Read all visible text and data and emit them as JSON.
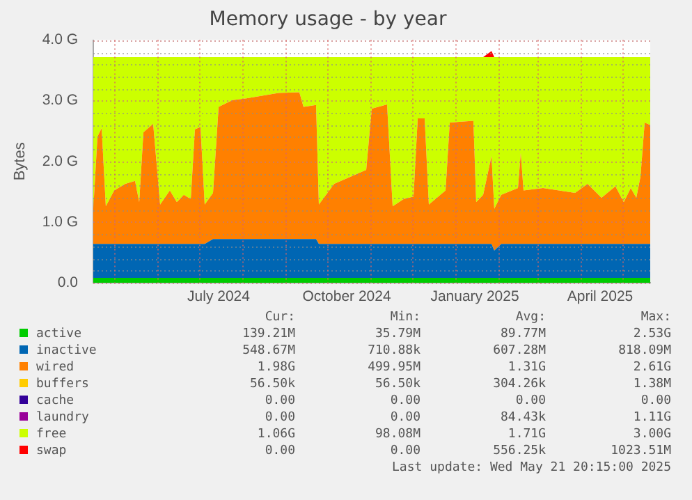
{
  "chart_data": {
    "type": "area",
    "title": "Memory usage - by year",
    "ylabel": "Bytes",
    "stacked": true,
    "legend": "bottom",
    "grid": true,
    "x": [
      "2024-04-16",
      "2024-04-19",
      "2024-04-22",
      "2024-04-25",
      "2024-05-01",
      "2024-05-09",
      "2024-05-16",
      "2024-05-19",
      "2024-05-22",
      "2024-05-29",
      "2024-06-03",
      "2024-06-10",
      "2024-06-15",
      "2024-06-20",
      "2024-06-25",
      "2024-06-28",
      "2024-07-02",
      "2024-07-05",
      "2024-07-11",
      "2024-07-15",
      "2024-07-25",
      "2024-08-04",
      "2024-08-27",
      "2024-09-11",
      "2024-09-14",
      "2024-09-23",
      "2024-09-25",
      "2024-10-06",
      "2024-10-29",
      "2024-11-02",
      "2024-11-13",
      "2024-11-17",
      "2024-11-25",
      "2024-12-02",
      "2024-12-05",
      "2024-12-10",
      "2024-12-13",
      "2024-12-25",
      "2024-12-28",
      "2025-01-14",
      "2025-01-16",
      "2025-01-21",
      "2025-01-27",
      "2025-01-29",
      "2025-02-03",
      "2025-02-15",
      "2025-02-17",
      "2025-02-19",
      "2025-03-05",
      "2025-03-28",
      "2025-04-06",
      "2025-04-16",
      "2025-04-26",
      "2025-05-02",
      "2025-05-07",
      "2025-05-11",
      "2025-05-14",
      "2025-05-17",
      "2025-05-21"
    ],
    "xlim": [
      "2024-04-16",
      "2025-05-21"
    ],
    "xticks": [
      {
        "value": "2024-05-01",
        "label": null
      },
      {
        "value": "2024-06-01",
        "label": null
      },
      {
        "value": "2024-07-01",
        "label": null
      },
      {
        "value": "2024-07-15",
        "label": "July 2024"
      },
      {
        "value": "2024-08-01",
        "label": null
      },
      {
        "value": "2024-09-01",
        "label": null
      },
      {
        "value": "2024-10-01",
        "label": null
      },
      {
        "value": "2024-10-15",
        "label": "October 2024"
      },
      {
        "value": "2024-11-01",
        "label": null
      },
      {
        "value": "2024-12-01",
        "label": null
      },
      {
        "value": "2025-01-01",
        "label": null
      },
      {
        "value": "2025-01-15",
        "label": "January 2025"
      },
      {
        "value": "2025-02-01",
        "label": null
      },
      {
        "value": "2025-03-01",
        "label": null
      },
      {
        "value": "2025-04-01",
        "label": null
      },
      {
        "value": "2025-04-15",
        "label": "April 2025"
      },
      {
        "value": "2025-05-01",
        "label": null
      }
    ],
    "ylim": [
      0,
      4
    ],
    "yticks": [
      {
        "value": 0,
        "label": "0.0"
      },
      {
        "value": 0.2,
        "label": null
      },
      {
        "value": 0.4,
        "label": null
      },
      {
        "value": 0.6,
        "label": null
      },
      {
        "value": 0.8,
        "label": null
      },
      {
        "value": 1,
        "label": "1.0 G"
      },
      {
        "value": 1.2,
        "label": null
      },
      {
        "value": 1.4,
        "label": null
      },
      {
        "value": 1.6,
        "label": null
      },
      {
        "value": 1.8,
        "label": null
      },
      {
        "value": 2,
        "label": "2.0 G"
      },
      {
        "value": 2.2,
        "label": null
      },
      {
        "value": 2.4,
        "label": null
      },
      {
        "value": 2.6,
        "label": null
      },
      {
        "value": 2.8,
        "label": null
      },
      {
        "value": 3,
        "label": "3.0 G"
      },
      {
        "value": 3.2,
        "label": null
      },
      {
        "value": 3.4,
        "label": null
      },
      {
        "value": 3.6,
        "label": null
      },
      {
        "value": 3.8,
        "label": null
      },
      {
        "value": 4,
        "label": "4.0 G"
      }
    ],
    "series": [
      {
        "name": "active",
        "color": "#00cc00",
        "values": [
          0.08,
          0.08,
          0.08,
          0.08,
          0.08,
          0.08,
          0.08,
          0.08,
          0.08,
          0.08,
          0.08,
          0.08,
          0.08,
          0.08,
          0.08,
          0.08,
          0.08,
          0.08,
          0.08,
          0.08,
          0.08,
          0.08,
          0.08,
          0.08,
          0.08,
          0.08,
          0.08,
          0.08,
          0.08,
          0.08,
          0.08,
          0.08,
          0.08,
          0.08,
          0.08,
          0.08,
          0.08,
          0.08,
          0.08,
          0.08,
          0.08,
          0.08,
          0.08,
          0.08,
          0.08,
          0.08,
          0.08,
          0.08,
          0.08,
          0.08,
          0.08,
          0.08,
          0.08,
          0.08,
          0.08,
          0.08,
          0.08,
          0.08,
          0.08
        ]
      },
      {
        "name": "inactive",
        "color": "#0066b3",
        "values": [
          0.56,
          0.56,
          0.56,
          0.56,
          0.56,
          0.56,
          0.56,
          0.56,
          0.56,
          0.56,
          0.56,
          0.56,
          0.56,
          0.56,
          0.56,
          0.56,
          0.56,
          0.56,
          0.64,
          0.64,
          0.64,
          0.64,
          0.64,
          0.64,
          0.64,
          0.64,
          0.56,
          0.56,
          0.56,
          0.56,
          0.56,
          0.56,
          0.56,
          0.56,
          0.56,
          0.56,
          0.56,
          0.56,
          0.56,
          0.56,
          0.56,
          0.56,
          0.56,
          0.45,
          0.56,
          0.56,
          0.56,
          0.56,
          0.56,
          0.56,
          0.56,
          0.56,
          0.56,
          0.56,
          0.56,
          0.56,
          0.56,
          0.56,
          0.56
        ]
      },
      {
        "name": "wired",
        "color": "#ff8000",
        "values": [
          0.58,
          1.77,
          1.91,
          0.62,
          0.88,
          0.99,
          1.04,
          0.69,
          1.84,
          1.98,
          0.65,
          0.88,
          0.69,
          0.81,
          0.74,
          1.89,
          1.93,
          0.65,
          0.76,
          2.18,
          2.29,
          2.32,
          2.41,
          2.42,
          2.18,
          2.21,
          0.65,
          0.99,
          1.22,
          2.23,
          2.3,
          0.62,
          0.74,
          0.78,
          2.07,
          2.07,
          0.65,
          0.88,
          2.0,
          2.03,
          0.69,
          0.81,
          1.45,
          0.69,
          0.81,
          0.92,
          1.5,
          0.88,
          0.92,
          0.84,
          0.99,
          0.76,
          0.95,
          0.69,
          0.92,
          0.76,
          1.11,
          2.0,
          1.96
        ]
      },
      {
        "name": "buffers",
        "color": "#ffcc00",
        "values": [
          null,
          null,
          null,
          null,
          null,
          null,
          null,
          null,
          null,
          null,
          null,
          null,
          null,
          null,
          null,
          null,
          null,
          null,
          null,
          null,
          null,
          null,
          null,
          null,
          null,
          null,
          null,
          null,
          null,
          null,
          null,
          null,
          null,
          null,
          null,
          null,
          null,
          null,
          null,
          null,
          null,
          null,
          null,
          null,
          null,
          null,
          null,
          null,
          null,
          null,
          null,
          null,
          null,
          null,
          null,
          null,
          null,
          null,
          null
        ]
      },
      {
        "name": "cache",
        "color": "#330099",
        "values": [
          null,
          null,
          null,
          null,
          null,
          null,
          null,
          null,
          null,
          null,
          null,
          null,
          null,
          null,
          null,
          null,
          null,
          null,
          null,
          null,
          null,
          null,
          null,
          null,
          null,
          null,
          null,
          null,
          null,
          null,
          null,
          null,
          null,
          null,
          null,
          null,
          null,
          null,
          null,
          null,
          null,
          null,
          null,
          null,
          null,
          null,
          null,
          null,
          null,
          null,
          null,
          null,
          null,
          null,
          null,
          null,
          null,
          null,
          null
        ]
      },
      {
        "name": "laundry",
        "color": "#990099",
        "values": [
          null,
          null,
          null,
          null,
          null,
          null,
          null,
          null,
          null,
          null,
          null,
          null,
          null,
          null,
          null,
          null,
          null,
          null,
          null,
          null,
          null,
          null,
          null,
          null,
          null,
          null,
          null,
          null,
          null,
          null,
          null,
          null,
          null,
          null,
          null,
          null,
          null,
          null,
          null,
          null,
          null,
          null,
          null,
          null,
          null,
          null,
          null,
          null,
          null,
          null,
          null,
          null,
          null,
          null,
          null,
          null,
          null,
          null,
          null
        ]
      },
      {
        "name": "free",
        "color": "#ccff00",
        "values": [
          2.5,
          1.31,
          1.17,
          2.46,
          2.2,
          2.09,
          2.04,
          2.39,
          1.24,
          1.1,
          2.43,
          2.2,
          2.39,
          2.27,
          2.34,
          1.19,
          1.15,
          2.43,
          2.24,
          0.82,
          0.71,
          0.68,
          0.59,
          0.58,
          0.82,
          0.79,
          2.43,
          2.09,
          1.86,
          0.85,
          0.78,
          2.46,
          2.34,
          2.3,
          1.01,
          1.01,
          2.43,
          2.2,
          1.08,
          1.05,
          2.39,
          2.27,
          1.63,
          2.5,
          2.27,
          2.16,
          1.58,
          2.2,
          2.16,
          2.24,
          2.09,
          2.32,
          2.13,
          2.39,
          2.16,
          2.32,
          1.97,
          1.08,
          1.12
        ]
      },
      {
        "name": "swap",
        "color": "#ff0000",
        "values": [
          0,
          0,
          0,
          0,
          0,
          0,
          0,
          0,
          0,
          0,
          0,
          0,
          0,
          0,
          0,
          0,
          0,
          0,
          0,
          0,
          0,
          0,
          0,
          0,
          0,
          0,
          0,
          0,
          0,
          0,
          0,
          0,
          0,
          0,
          0,
          0,
          0,
          0,
          0,
          0,
          0,
          0,
          0.1,
          0,
          0,
          0,
          0,
          0,
          0,
          0,
          0,
          0,
          0,
          0,
          0,
          0,
          0,
          0,
          0
        ]
      }
    ],
    "annotations": [
      "Cur:",
      "Min:",
      "Avg:",
      "Max:",
      "139.21M",
      "35.79M",
      "89.77M",
      "2.53G",
      "548.67M",
      "710.88k",
      "607.28M",
      "818.09M",
      "1.98G",
      "499.95M",
      "1.31G",
      "2.61G",
      "56.50k",
      "56.50k",
      "304.26k",
      "1.38M",
      "0.00",
      "0.00",
      "0.00",
      "0.00",
      "0.00",
      "0.00",
      "84.43k",
      "1.11G",
      "1.06G",
      "98.08M",
      "1.71G",
      "3.00G",
      "0.00",
      "0.00",
      "556.25k",
      "1023.51M",
      "Last update: Wed May 21 20:15:00 2025"
    ]
  }
}
